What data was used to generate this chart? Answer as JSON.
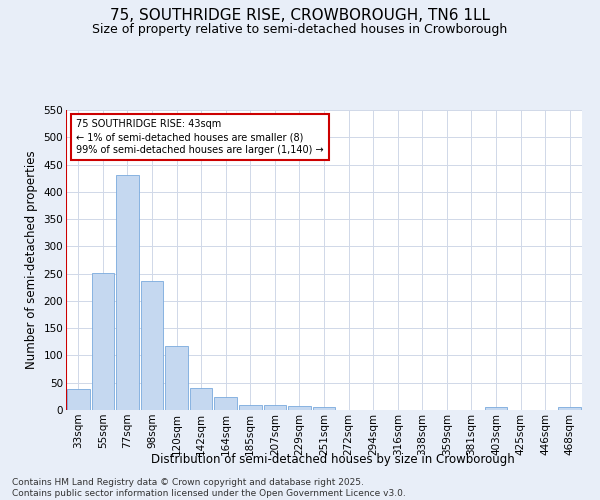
{
  "title": "75, SOUTHRIDGE RISE, CROWBOROUGH, TN6 1LL",
  "subtitle": "Size of property relative to semi-detached houses in Crowborough",
  "xlabel": "Distribution of semi-detached houses by size in Crowborough",
  "ylabel": "Number of semi-detached properties",
  "bar_labels": [
    "33sqm",
    "55sqm",
    "77sqm",
    "98sqm",
    "120sqm",
    "142sqm",
    "164sqm",
    "185sqm",
    "207sqm",
    "229sqm",
    "251sqm",
    "272sqm",
    "294sqm",
    "316sqm",
    "338sqm",
    "359sqm",
    "381sqm",
    "403sqm",
    "425sqm",
    "446sqm",
    "468sqm"
  ],
  "bar_values": [
    38,
    251,
    430,
    237,
    118,
    40,
    24,
    10,
    10,
    7,
    5,
    0,
    0,
    0,
    0,
    0,
    0,
    5,
    0,
    0,
    5
  ],
  "bar_color": "#c5d8f0",
  "bar_edge_color": "#7aaadd",
  "annotation_text": "75 SOUTHRIDGE RISE: 43sqm\n← 1% of semi-detached houses are smaller (8)\n99% of semi-detached houses are larger (1,140) →",
  "annotation_box_color": "#ffffff",
  "annotation_box_edge": "#cc0000",
  "ylim": [
    0,
    550
  ],
  "yticks": [
    0,
    50,
    100,
    150,
    200,
    250,
    300,
    350,
    400,
    450,
    500,
    550
  ],
  "background_color": "#e8eef8",
  "plot_bg_color": "#ffffff",
  "grid_color": "#d0d8e8",
  "footer": "Contains HM Land Registry data © Crown copyright and database right 2025.\nContains public sector information licensed under the Open Government Licence v3.0.",
  "title_fontsize": 11,
  "subtitle_fontsize": 9,
  "axis_label_fontsize": 8.5,
  "tick_fontsize": 7.5,
  "footer_fontsize": 6.5
}
